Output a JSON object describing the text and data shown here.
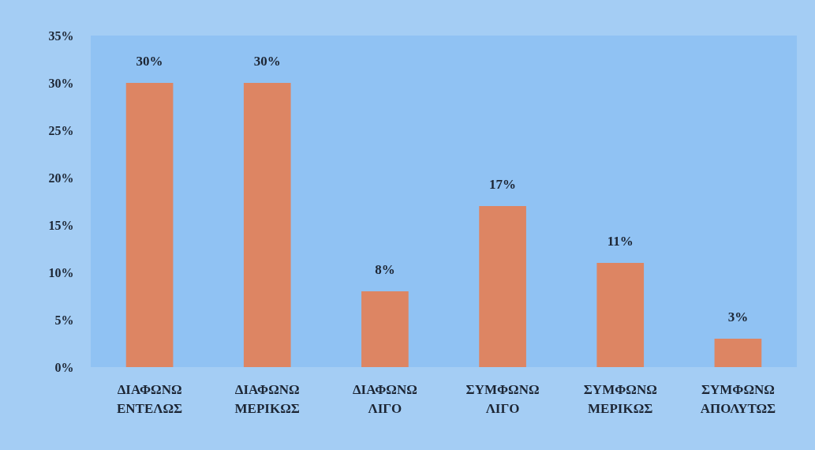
{
  "chart_data": {
    "type": "bar",
    "categories": [
      "ΔΙΑΦΩΝΩ ΕΝΤΕΛΩΣ",
      "ΔΙΑΦΩΝΩ ΜΕΡΙΚΩΣ",
      "ΔΙΑΦΩΝΩ ΛΙΓΟ",
      "ΣΥΜΦΩΝΩ ΛΙΓΟ",
      "ΣΥΜΦΩΝΩ ΜΕΡΙΚΩΣ",
      "ΣΥΜΦΩΝΩ ΑΠΟΛΥΤΩΣ"
    ],
    "values": [
      30,
      30,
      8,
      17,
      11,
      3
    ],
    "value_labels": [
      "30%",
      "30%",
      "8%",
      "17%",
      "11%",
      "3%"
    ],
    "color": "#dd8563",
    "ylim": [
      0,
      35
    ],
    "yticks": [
      {
        "value": 0,
        "label": "0%"
      },
      {
        "value": 5,
        "label": "5%"
      },
      {
        "value": 10,
        "label": "10%"
      },
      {
        "value": 15,
        "label": "15%"
      },
      {
        "value": 20,
        "label": "20%"
      },
      {
        "value": 25,
        "label": "25%"
      },
      {
        "value": 30,
        "label": "30%"
      },
      {
        "value": 35,
        "label": "35%"
      }
    ],
    "grid": false
  }
}
